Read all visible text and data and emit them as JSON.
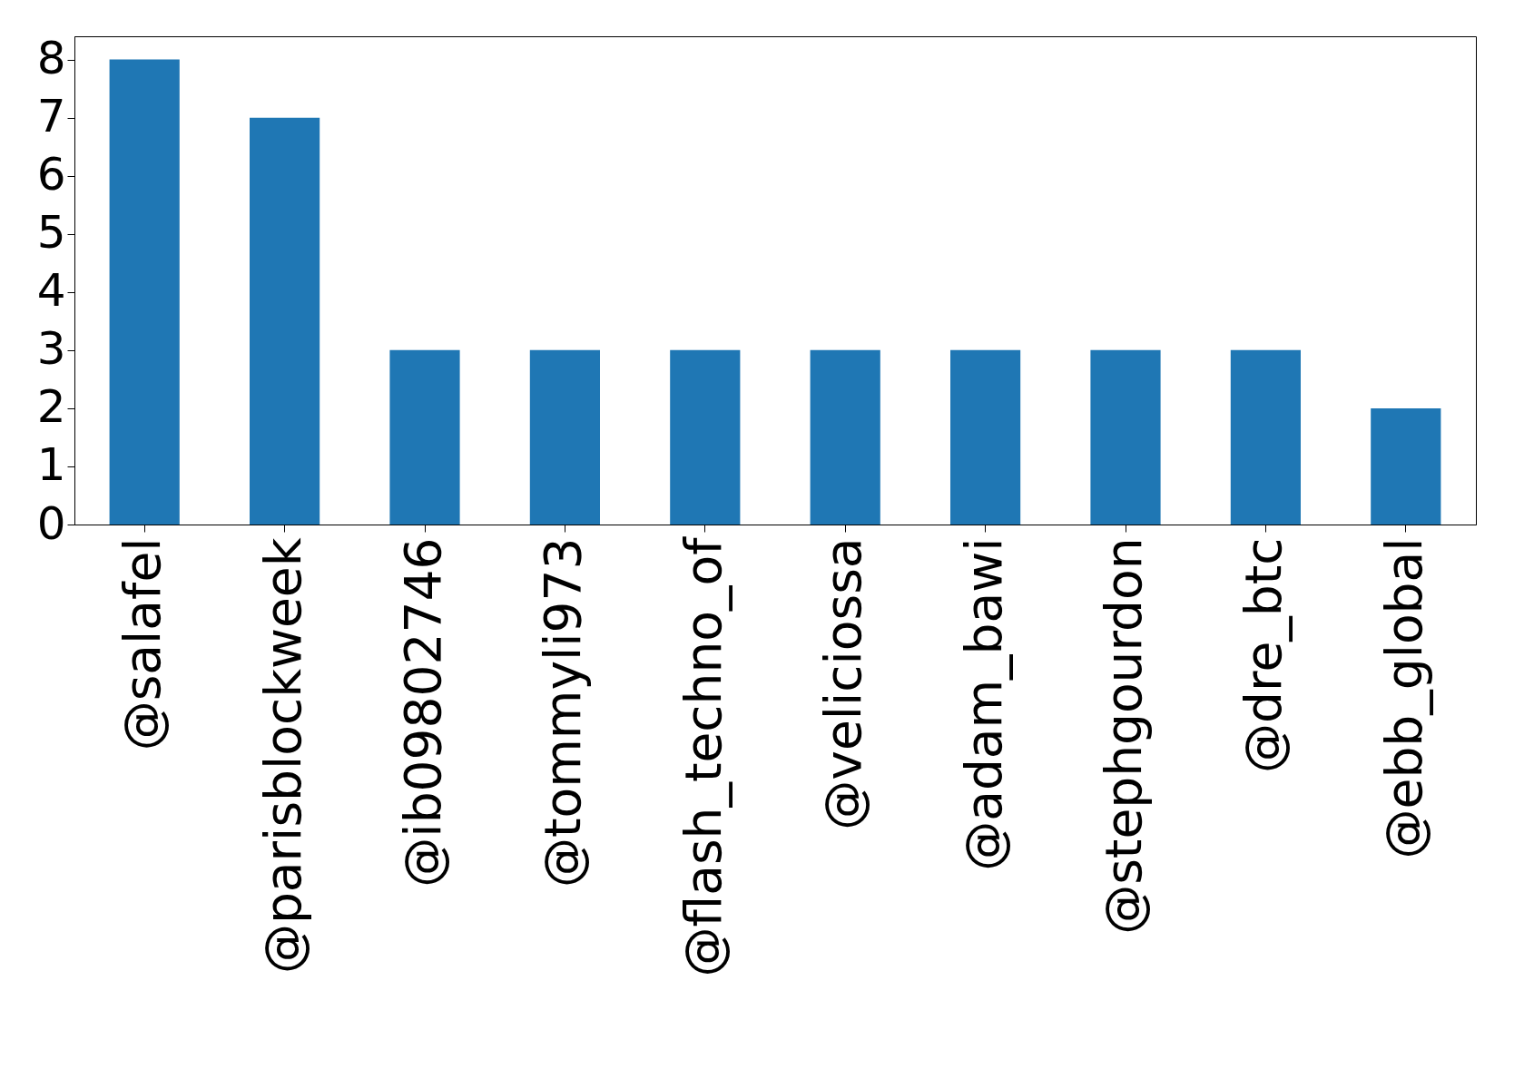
{
  "chart_data": {
    "type": "bar",
    "categories": [
      "@salafel",
      "@parisblockweek",
      "@ib09802746",
      "@tommyli973",
      "@flash_techno_of",
      "@veliciossa",
      "@adam_bawi",
      "@stephgourdon",
      "@dre_btc",
      "@ebb_global"
    ],
    "values": [
      8,
      7,
      3,
      3,
      3,
      3,
      3,
      3,
      3,
      2
    ],
    "color": "#1f77b4",
    "ylim": [
      0,
      8.4
    ],
    "yticks": [
      0,
      1,
      2,
      3,
      4,
      5,
      6,
      7,
      8
    ],
    "grid": false
  }
}
